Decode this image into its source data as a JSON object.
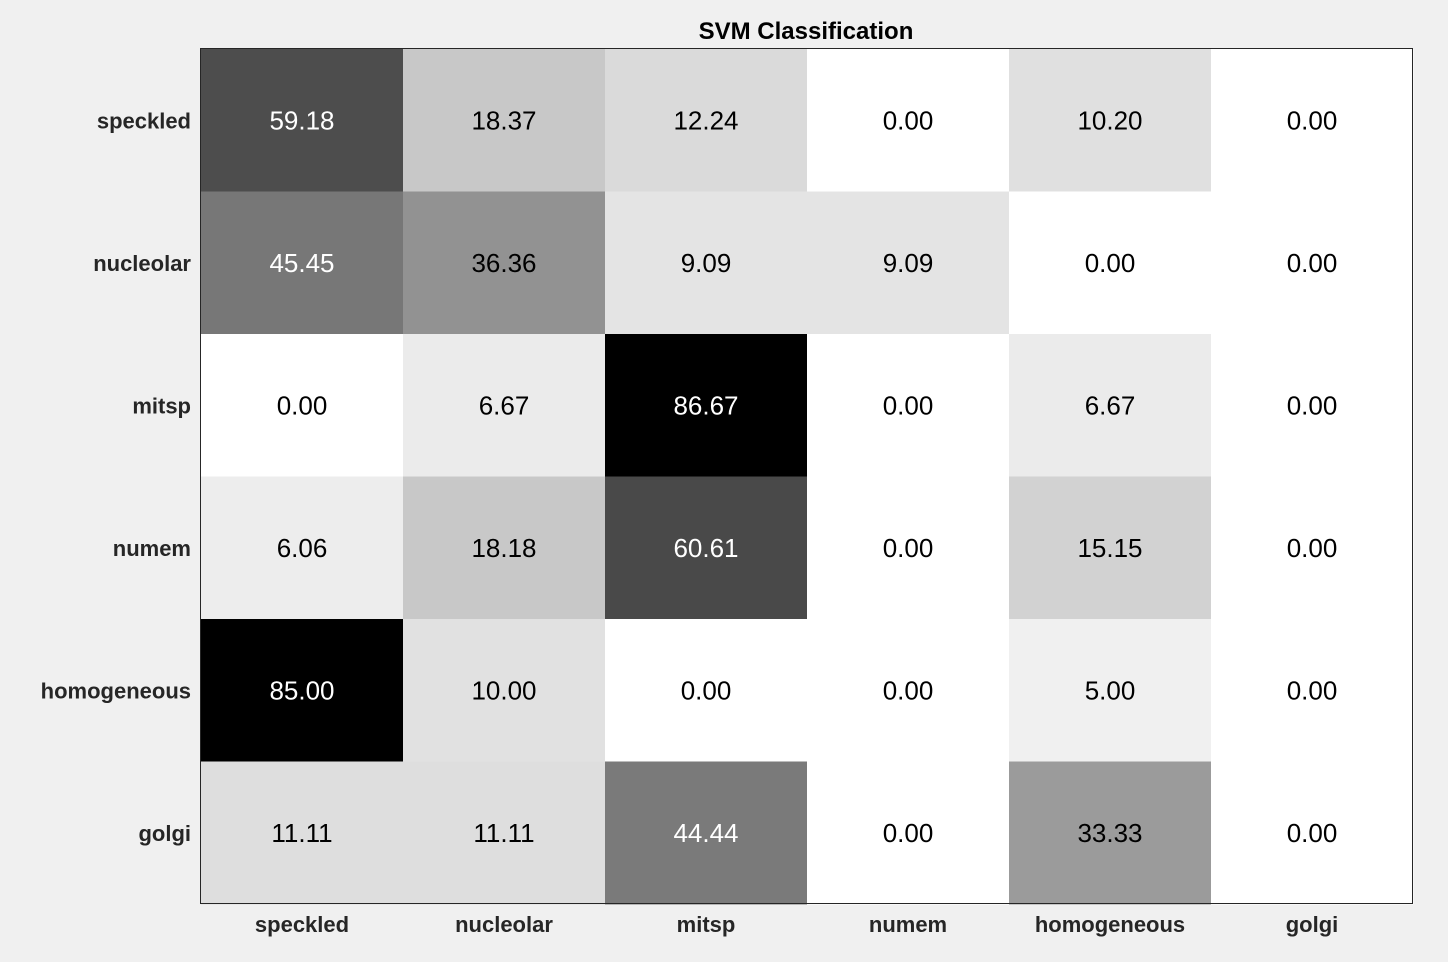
{
  "chart_data": {
    "type": "heatmap",
    "title": "SVM Classification",
    "xlabel": "",
    "ylabel": "",
    "colormap": "gray (reversed: higher value = darker)",
    "grid": false,
    "x_categories": [
      "speckled",
      "nucleolar",
      "mitsp",
      "numem",
      "homogeneous",
      "golgi"
    ],
    "y_categories": [
      "speckled",
      "nucleolar",
      "mitsp",
      "numem",
      "homogeneous",
      "golgi"
    ],
    "values": [
      [
        59.18,
        18.37,
        12.24,
        0.0,
        10.2,
        0.0
      ],
      [
        45.45,
        36.36,
        9.09,
        9.09,
        0.0,
        0.0
      ],
      [
        0.0,
        6.67,
        86.67,
        0.0,
        6.67,
        0.0
      ],
      [
        6.06,
        18.18,
        60.61,
        0.0,
        15.15,
        0.0
      ],
      [
        85.0,
        10.0,
        0.0,
        0.0,
        5.0,
        0.0
      ],
      [
        11.11,
        11.11,
        44.44,
        0.0,
        33.33,
        0.0
      ]
    ],
    "value_labels": [
      [
        "59.18",
        "18.37",
        "12.24",
        "0.00",
        "10.20",
        "0.00"
      ],
      [
        "45.45",
        "36.36",
        "9.09",
        "9.09",
        "0.00",
        "0.00"
      ],
      [
        "0.00",
        "6.67",
        "86.67",
        "0.00",
        "6.67",
        "0.00"
      ],
      [
        "6.06",
        "18.18",
        "60.61",
        "0.00",
        "15.15",
        "0.00"
      ],
      [
        "85.00",
        "10.00",
        "0.00",
        "0.00",
        "5.00",
        "0.00"
      ],
      [
        "11.11",
        "11.11",
        "44.44",
        "0.00",
        "33.33",
        "0.00"
      ]
    ],
    "colors": {
      "background": "#f0f0f0",
      "axes_border": "#262626",
      "label_dark_text": "#000000",
      "label_light_text": "#ffffff"
    }
  }
}
